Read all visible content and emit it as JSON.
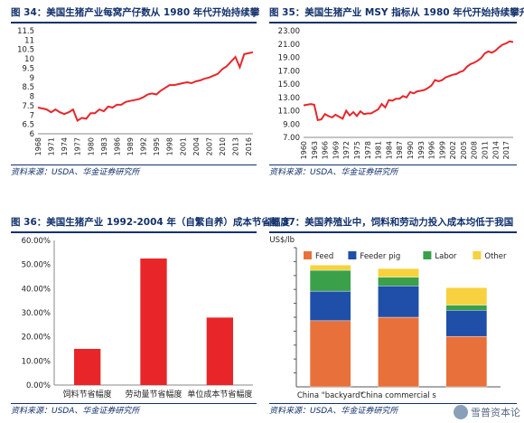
{
  "chart_data": [
    {
      "id": "fig34",
      "type": "line",
      "title": "图 34：美国生猪产业每窝产仔数从 1980 年代开始持续攀",
      "source": "资料来源：USDA、华金证券研究所",
      "ylim": [
        6,
        11.5
      ],
      "yticks": [
        6,
        6.5,
        7,
        7.5,
        8,
        8.5,
        9,
        9.5,
        10,
        10.5,
        11,
        11.5
      ],
      "ytick_labels": [
        "6",
        "6.5",
        "7",
        "7.5",
        "8",
        "8.5",
        "9",
        "9.5",
        "10",
        "10.5",
        "11",
        "11.5"
      ],
      "xlim": [
        1968,
        2017
      ],
      "xticks": [
        1968,
        1971,
        1974,
        1977,
        1980,
        1983,
        1986,
        1989,
        1992,
        1995,
        1998,
        2001,
        2004,
        2007,
        2010,
        2013,
        2016
      ],
      "color": "#e8262a",
      "series": [
        {
          "x": [
            1968,
            1969,
            1970,
            1971,
            1972,
            1973,
            1974,
            1975,
            1976,
            1977,
            1978,
            1979,
            1980,
            1981,
            1982,
            1983,
            1984,
            1985,
            1986,
            1987,
            1988,
            1989,
            1990,
            1991,
            1992,
            1993,
            1994,
            1995,
            1996,
            1997,
            1998,
            1999,
            2000,
            2001,
            2002,
            2003,
            2004,
            2005,
            2006,
            2007,
            2008,
            2009,
            2010,
            2011,
            2012,
            2013,
            2014,
            2015,
            2016,
            2017
          ],
          "y": [
            7.4,
            7.35,
            7.3,
            7.15,
            7.3,
            7.15,
            7.05,
            7.15,
            7.3,
            6.7,
            6.85,
            6.8,
            7.1,
            7.1,
            7.3,
            7.2,
            7.45,
            7.4,
            7.55,
            7.55,
            7.7,
            7.75,
            7.8,
            7.85,
            7.95,
            8.1,
            8.15,
            8.1,
            8.3,
            8.45,
            8.6,
            8.6,
            8.65,
            8.7,
            8.75,
            8.7,
            8.8,
            8.85,
            8.95,
            9.0,
            9.1,
            9.2,
            9.45,
            9.6,
            9.85,
            10.1,
            9.55,
            10.25,
            10.3,
            10.35
          ]
        }
      ]
    },
    {
      "id": "fig35",
      "type": "line",
      "title": "图 35：美国生猪产业 MSY 指标从 1980 年代开始持续攀升",
      "source": "资料来源：USDA、华金证券研究所",
      "ylim": [
        7,
        23
      ],
      "yticks": [
        7,
        9,
        11,
        13,
        15,
        17,
        19,
        21,
        23
      ],
      "ytick_labels": [
        "7.00",
        "9.00",
        "11.00",
        "13.00",
        "15.00",
        "17.00",
        "19.00",
        "21.00",
        "23.00"
      ],
      "xlim": [
        1960,
        2019
      ],
      "xticks": [
        1960,
        1963,
        1966,
        1969,
        1972,
        1975,
        1978,
        1981,
        1984,
        1987,
        1990,
        1993,
        1996,
        1999,
        2002,
        2005,
        2008,
        2011,
        2014,
        2017
      ],
      "color": "#e8262a",
      "series": [
        {
          "x": [
            1960,
            1961,
            1962,
            1963,
            1964,
            1965,
            1966,
            1967,
            1968,
            1969,
            1970,
            1971,
            1972,
            1973,
            1974,
            1975,
            1976,
            1977,
            1978,
            1979,
            1980,
            1981,
            1982,
            1983,
            1984,
            1985,
            1986,
            1987,
            1988,
            1989,
            1990,
            1991,
            1992,
            1993,
            1994,
            1995,
            1996,
            1997,
            1998,
            1999,
            2000,
            2001,
            2002,
            2003,
            2004,
            2005,
            2006,
            2007,
            2008,
            2009,
            2010,
            2011,
            2012,
            2013,
            2014,
            2015,
            2016,
            2017,
            2018,
            2019
          ],
          "y": [
            11.8,
            11.9,
            12.0,
            11.9,
            9.6,
            9.7,
            10.5,
            10.2,
            10.0,
            10.4,
            10.1,
            9.8,
            11.0,
            10.3,
            10.8,
            10.2,
            10.9,
            10.5,
            10.6,
            10.6,
            10.9,
            11.2,
            12.0,
            11.5,
            12.6,
            12.5,
            12.8,
            12.8,
            13.2,
            13.0,
            13.8,
            13.6,
            13.9,
            14.0,
            14.1,
            14.4,
            14.8,
            15.6,
            15.4,
            15.6,
            16.0,
            16.2,
            16.4,
            16.5,
            16.8,
            17.0,
            17.6,
            18.0,
            18.2,
            18.5,
            18.9,
            19.6,
            19.9,
            19.7,
            20.0,
            20.5,
            20.9,
            21.1,
            21.4,
            21.3
          ]
        }
      ]
    },
    {
      "id": "fig36",
      "type": "bar",
      "title": "图 36：美国生猪产业 1992-2004 年（自繁自养）成本节省幅度",
      "source": "资料来源：USDA、华金证券研究所",
      "categories": [
        "饲料节省幅度",
        "劳动量节省幅度",
        "单位成本节省幅度"
      ],
      "values": [
        0.15,
        0.525,
        0.28
      ],
      "ylim": [
        0,
        0.6
      ],
      "yticks": [
        0,
        0.1,
        0.2,
        0.3,
        0.4,
        0.5,
        0.6
      ],
      "ytick_labels": [
        "0.00%",
        "10.00%",
        "20.00%",
        "30.00%",
        "40.00%",
        "50.00%",
        "60.00%"
      ],
      "color": "#e8262a"
    },
    {
      "id": "fig37",
      "type": "bar",
      "stacked": true,
      "title": "图 37：美国养殖业中，饲料和劳动力投入成本均低于我国",
      "source": "资料来源：USDA、华金证券研究所",
      "ylabel": "US$/lb",
      "categories": [
        "China \"backyard\"",
        "China commercial s",
        ""
      ],
      "ylim": [
        0,
        0.8
      ],
      "series": [
        {
          "name": "Feed",
          "color": "#e8703a",
          "values": [
            0.38,
            0.4,
            0.29
          ]
        },
        {
          "name": "Feeder pig",
          "color": "#1f4fa8",
          "values": [
            0.17,
            0.18,
            0.15
          ]
        },
        {
          "name": "Labor",
          "color": "#3aa04a",
          "values": [
            0.12,
            0.05,
            0.03
          ]
        },
        {
          "name": "Other",
          "color": "#f7d23e",
          "values": [
            0.03,
            0.05,
            0.1
          ]
        }
      ]
    }
  ],
  "watermark": {
    "text": "雪普资本论"
  }
}
